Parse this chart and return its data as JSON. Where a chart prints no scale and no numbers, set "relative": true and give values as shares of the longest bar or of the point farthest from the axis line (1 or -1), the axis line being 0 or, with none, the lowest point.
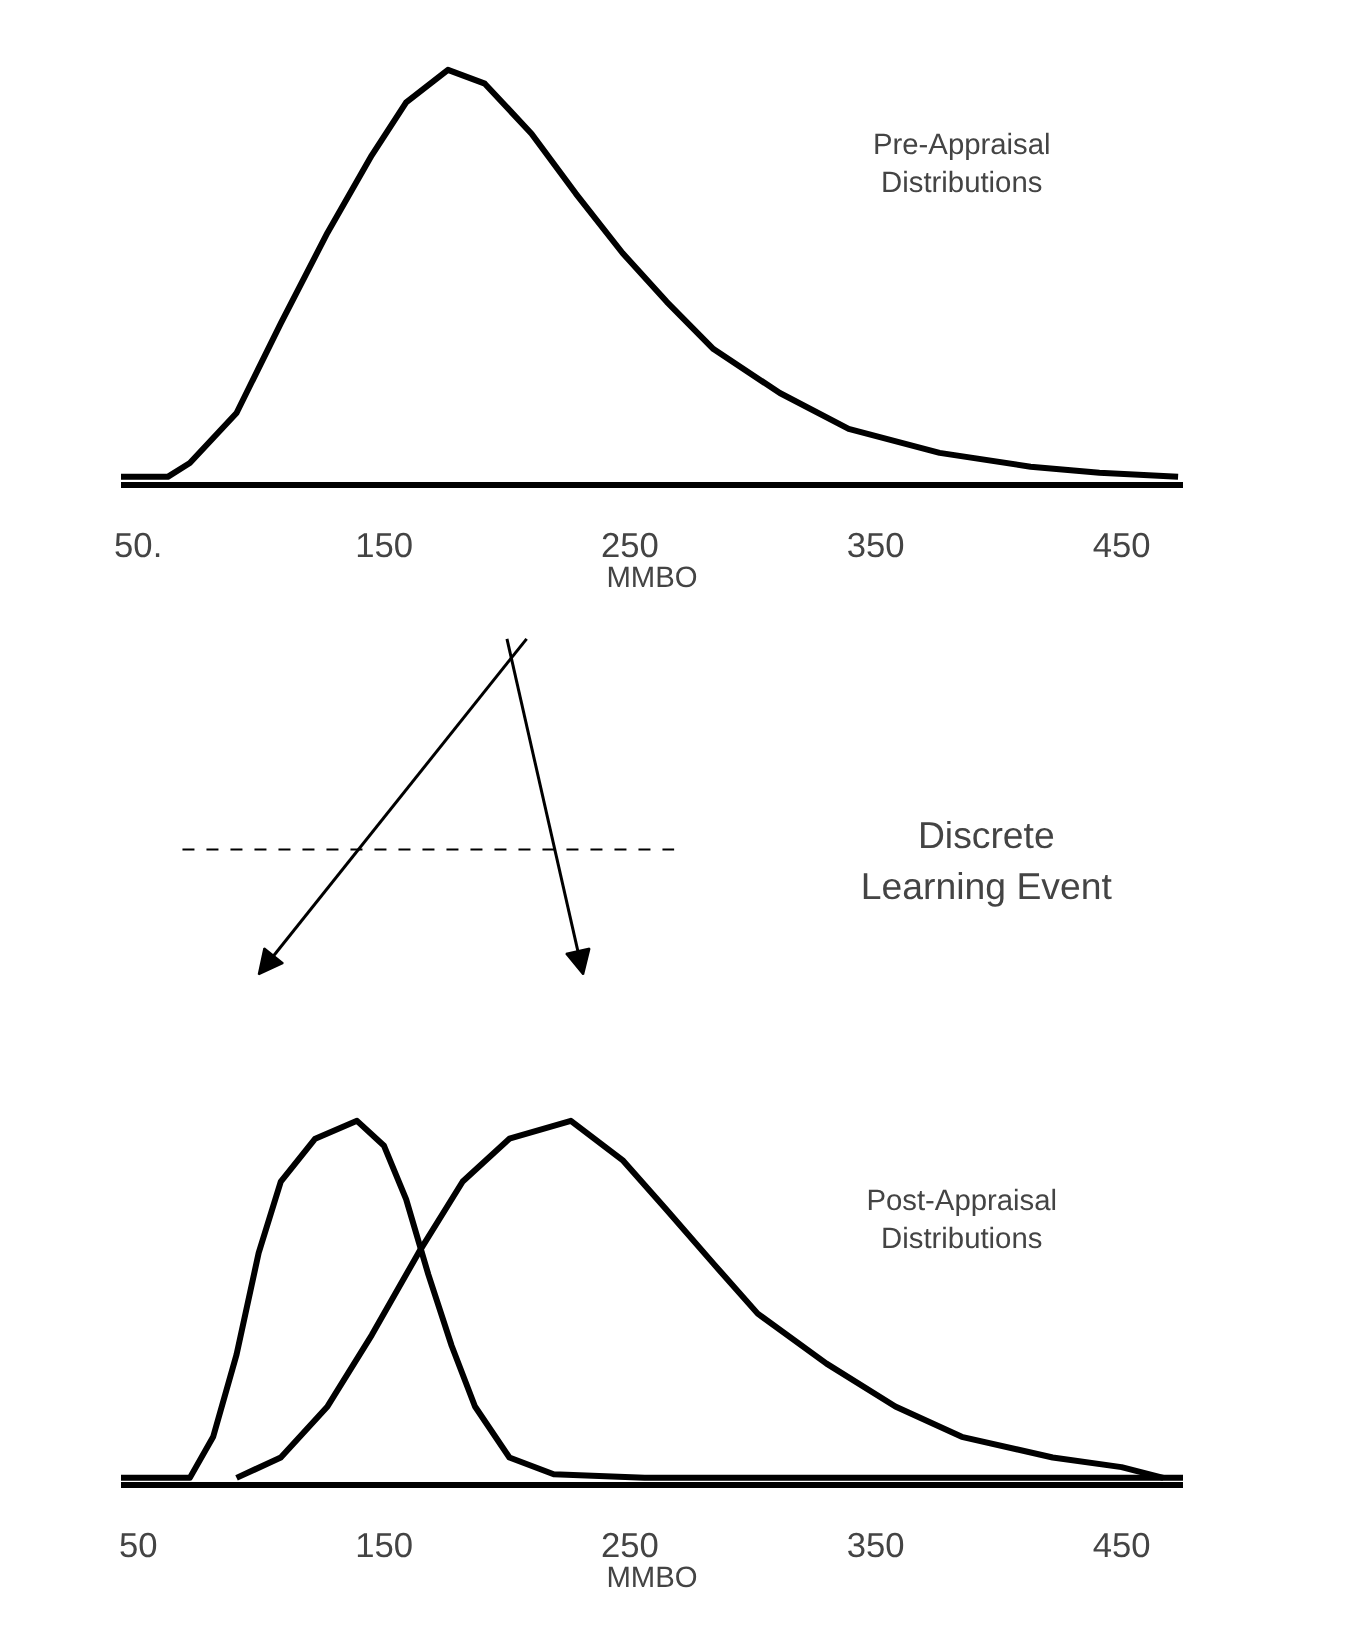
{
  "chart_data": [
    {
      "type": "line",
      "relative": true,
      "xlabel": "MMBO",
      "xlim": [
        43,
        475
      ],
      "xticks": [
        {
          "value": 50,
          "label": "50."
        },
        150,
        250,
        350,
        450
      ],
      "marker": "none",
      "line_style": "solid",
      "series": [
        {
          "color": "#000000",
          "x": [
            43,
            62,
            71,
            90,
            108,
            127,
            145,
            159,
            176,
            191,
            210,
            228,
            247,
            265,
            284,
            311,
            339,
            376,
            413,
            441,
            473
          ],
          "values": [
            0,
            0,
            0.034,
            0.157,
            0.377,
            0.6,
            0.79,
            0.92,
            1,
            0.966,
            0.843,
            0.696,
            0.55,
            0.43,
            0.314,
            0.206,
            0.118,
            0.059,
            0.025,
            0.01,
            0
          ]
        }
      ],
      "annotations": [
        "Pre-Appraisal\nDistributions"
      ]
    },
    {
      "type": "line",
      "relative": true,
      "xlabel": "MMBO",
      "xlim": [
        43,
        475
      ],
      "xticks": [
        50,
        150,
        250,
        350,
        450
      ],
      "marker": "none",
      "line_style": "solid",
      "series": [
        {
          "color": "#000000",
          "x": [
            43,
            71,
            80.5,
            90,
            99,
            108,
            122,
            139,
            150,
            159,
            168,
            177.5,
            187,
            201,
            219,
            256,
            475
          ],
          "values": [
            0,
            0,
            0.115,
            0.345,
            0.63,
            0.83,
            0.95,
            1,
            0.93,
            0.78,
            0.57,
            0.37,
            0.2,
            0.057,
            0.01,
            0,
            0
          ]
        },
        {
          "color": "#000000",
          "x": [
            90,
            108,
            127,
            145,
            164,
            182,
            201,
            226,
            247,
            265,
            284,
            302,
            330,
            358,
            385,
            422,
            450,
            467
          ],
          "values": [
            0,
            0.057,
            0.2,
            0.4,
            0.63,
            0.83,
            0.95,
            1,
            0.89,
            0.75,
            0.6,
            0.46,
            0.32,
            0.2,
            0.115,
            0.057,
            0.03,
            0
          ]
        }
      ],
      "annotations": [
        "Post-Appraisal\nDistributions",
        "Discrete\nLearning Event"
      ]
    }
  ]
}
